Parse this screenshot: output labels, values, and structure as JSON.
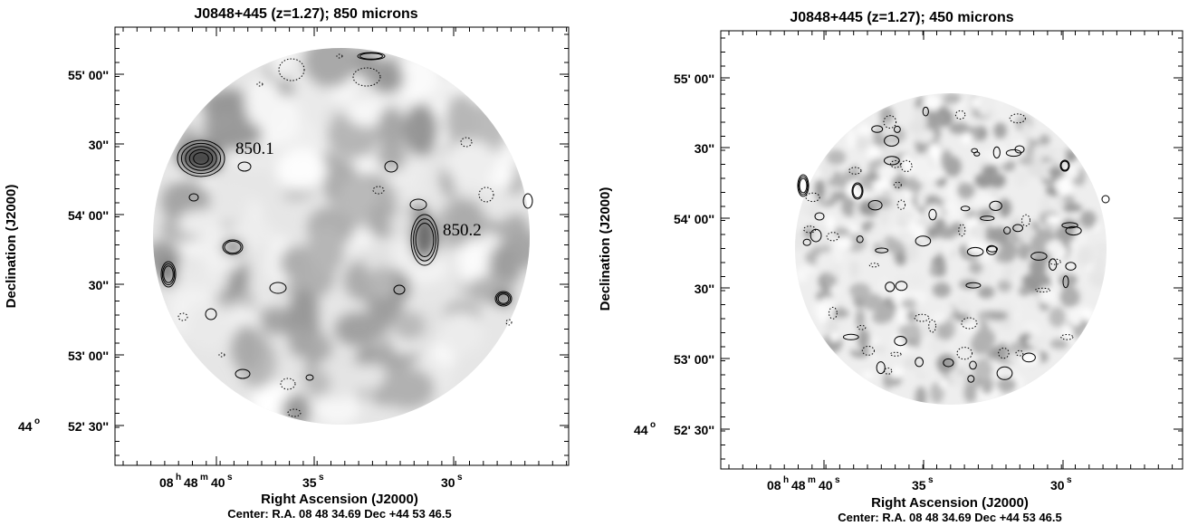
{
  "panels": [
    {
      "title": "J0848+445 (z=1.27); 850 microns",
      "xlabel": "Right Ascension (J2000)",
      "ylabel": "Declination (J2000)",
      "center": "Center:  R.A. 08 48 34.69    Dec  +44 53 46.5",
      "ra_ticks": [
        {
          "value": 40,
          "label": "08",
          "h": "h",
          "m_val": "48",
          "m": "m",
          "s_val": "40",
          "s": "s"
        },
        {
          "value": 35,
          "label": "35",
          "s": "s"
        },
        {
          "value": 30,
          "label": "30",
          "s": "s"
        }
      ],
      "dec_ticks": [
        {
          "value": "55'00",
          "label": "55' 00''"
        },
        {
          "value": "54'30",
          "label": "30''"
        },
        {
          "value": "54'00",
          "label": "54' 00''"
        },
        {
          "value": "53'30",
          "label": "30''"
        },
        {
          "value": "53'00",
          "label": "53' 00''"
        },
        {
          "value": "52'30",
          "label": "52' 30''",
          "prefix": "44",
          "prefix_sup": "o"
        }
      ],
      "sources": [
        {
          "label": "850.1"
        },
        {
          "label": "850.2"
        }
      ]
    },
    {
      "title": "J0848+445 (z=1.27); 450 microns",
      "xlabel": "Right Ascension (J2000)",
      "ylabel": "Declination (J2000)",
      "center": "Center:  R.A. 08 48 34.69    Dec  +44 53 46.5",
      "ra_ticks": [
        {
          "value": 40,
          "label": "08",
          "h": "h",
          "m_val": "48",
          "m": "m",
          "s_val": "40",
          "s": "s"
        },
        {
          "value": 35,
          "label": "35",
          "s": "s"
        },
        {
          "value": 30,
          "label": "30",
          "s": "s"
        }
      ],
      "dec_ticks": [
        {
          "value": "55'00",
          "label": "55' 00''"
        },
        {
          "value": "54'30",
          "label": "30''"
        },
        {
          "value": "54'00",
          "label": "54' 00''"
        },
        {
          "value": "53'30",
          "label": "30''"
        },
        {
          "value": "53'00",
          "label": "53' 00''"
        },
        {
          "value": "52'30",
          "label": "52' 30''",
          "prefix": "44",
          "prefix_sup": "o"
        }
      ],
      "sources": []
    }
  ]
}
